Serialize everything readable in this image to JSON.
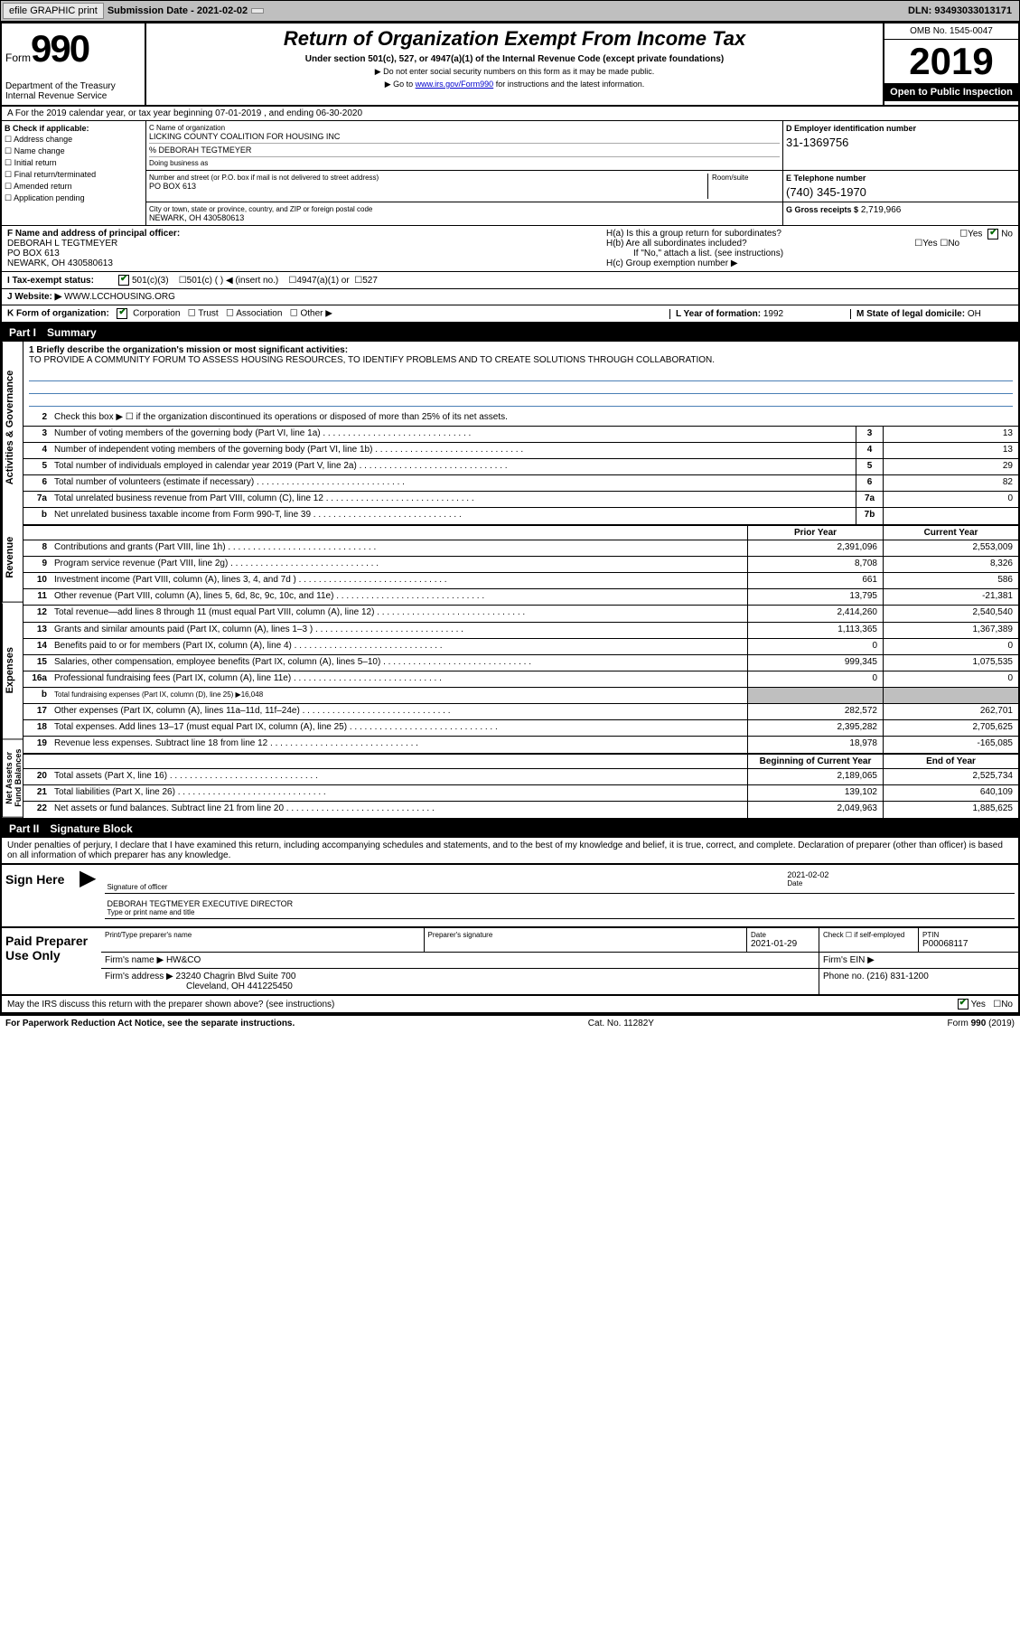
{
  "topbar": {
    "efile": "efile GRAPHIC print",
    "sub_label": "Submission Date - 2021-02-02",
    "dln": "DLN: 93493033013171"
  },
  "header": {
    "form_word": "Form",
    "form_number": "990",
    "title": "Return of Organization Exempt From Income Tax",
    "subtitle": "Under section 501(c), 527, or 4947(a)(1) of the Internal Revenue Code (except private foundations)",
    "note1": "▶ Do not enter social security numbers on this form as it may be made public.",
    "note2_pre": "▶ Go to ",
    "note2_link": "www.irs.gov/Form990",
    "note2_post": " for instructions and the latest information.",
    "dept": "Department of the Treasury\nInternal Revenue Service",
    "omb": "OMB No. 1545-0047",
    "year": "2019",
    "open_public": "Open to Public Inspection"
  },
  "row_a": "A For the 2019 calendar year, or tax year beginning 07-01-2019   , and ending 06-30-2020",
  "section_b": {
    "label": "B Check if applicable:",
    "opts": [
      "Address change",
      "Name change",
      "Initial return",
      "Final return/terminated",
      "Amended return",
      "Application pending"
    ]
  },
  "section_c": {
    "name_lbl": "C Name of organization",
    "name": "LICKING COUNTY COALITION FOR HOUSING INC",
    "care_of": "% DEBORAH TEGTMEYER",
    "dba_lbl": "Doing business as",
    "addr_lbl": "Number and street (or P.O. box if mail is not delivered to street address)",
    "room_lbl": "Room/suite",
    "addr": "PO BOX 613",
    "city_lbl": "City or town, state or province, country, and ZIP or foreign postal code",
    "city": "NEWARK, OH  430580613"
  },
  "section_d": {
    "ein_lbl": "D Employer identification number",
    "ein": "31-1369756",
    "tel_lbl": "E Telephone number",
    "tel": "(740) 345-1970",
    "gross_lbl": "G Gross receipts $",
    "gross": "2,719,966"
  },
  "section_f": {
    "lbl": "F Name and address of principal officer:",
    "name": "DEBORAH L TEGTMEYER",
    "addr1": "PO BOX 613",
    "addr2": "NEWARK, OH  430580613"
  },
  "section_h": {
    "ha": "H(a)  Is this a group return for subordinates?",
    "hb": "H(b)  Are all subordinates included?",
    "hb_note": "If \"No,\" attach a list. (see instructions)",
    "hc": "H(c)  Group exemption number ▶",
    "yes": "Yes",
    "no": "No"
  },
  "section_i": {
    "lbl": "I  Tax-exempt status:",
    "opts": [
      "501(c)(3)",
      "501(c) (   ) ◀ (insert no.)",
      "4947(a)(1) or",
      "527"
    ]
  },
  "section_j": {
    "lbl": "J  Website: ▶",
    "val": "WWW.LCCHOUSING.ORG"
  },
  "section_k": {
    "lbl": "K Form of organization:",
    "opts": [
      "Corporation",
      "Trust",
      "Association",
      "Other ▶"
    ]
  },
  "section_l": {
    "lbl": "L Year of formation:",
    "val": "1992"
  },
  "section_m": {
    "lbl": "M State of legal domicile:",
    "val": "OH"
  },
  "part1": {
    "header": "Part I",
    "title": "Summary",
    "line1_lbl": "1  Briefly describe the organization's mission or most significant activities:",
    "mission": "TO PROVIDE A COMMUNITY FORUM TO ASSESS HOUSING RESOURCES, TO IDENTIFY PROBLEMS AND TO CREATE SOLUTIONS THROUGH COLLABORATION.",
    "line2": "Check this box ▶ ☐  if the organization discontinued its operations or disposed of more than 25% of its net assets.",
    "col_prior": "Prior Year",
    "col_current": "Current Year",
    "col_begin": "Beginning of Current Year",
    "col_end": "End of Year",
    "vtabs": {
      "gov": "Activities & Governance",
      "rev": "Revenue",
      "exp": "Expenses",
      "net": "Net Assets or Fund Balances"
    },
    "lines_gov": [
      {
        "n": "3",
        "d": "Number of voting members of the governing body (Part VI, line 1a)",
        "nb": "3",
        "v": "13"
      },
      {
        "n": "4",
        "d": "Number of independent voting members of the governing body (Part VI, line 1b)",
        "nb": "4",
        "v": "13"
      },
      {
        "n": "5",
        "d": "Total number of individuals employed in calendar year 2019 (Part V, line 2a)",
        "nb": "5",
        "v": "29"
      },
      {
        "n": "6",
        "d": "Total number of volunteers (estimate if necessary)",
        "nb": "6",
        "v": "82"
      },
      {
        "n": "7a",
        "d": "Total unrelated business revenue from Part VIII, column (C), line 12",
        "nb": "7a",
        "v": "0"
      },
      {
        "n": "b",
        "d": "Net unrelated business taxable income from Form 990-T, line 39",
        "nb": "7b",
        "v": ""
      }
    ],
    "lines_rev": [
      {
        "n": "8",
        "d": "Contributions and grants (Part VIII, line 1h)",
        "p": "2,391,096",
        "c": "2,553,009"
      },
      {
        "n": "9",
        "d": "Program service revenue (Part VIII, line 2g)",
        "p": "8,708",
        "c": "8,326"
      },
      {
        "n": "10",
        "d": "Investment income (Part VIII, column (A), lines 3, 4, and 7d )",
        "p": "661",
        "c": "586"
      },
      {
        "n": "11",
        "d": "Other revenue (Part VIII, column (A), lines 5, 6d, 8c, 9c, 10c, and 11e)",
        "p": "13,795",
        "c": "-21,381"
      },
      {
        "n": "12",
        "d": "Total revenue—add lines 8 through 11 (must equal Part VIII, column (A), line 12)",
        "p": "2,414,260",
        "c": "2,540,540"
      }
    ],
    "lines_exp": [
      {
        "n": "13",
        "d": "Grants and similar amounts paid (Part IX, column (A), lines 1–3 )",
        "p": "1,113,365",
        "c": "1,367,389"
      },
      {
        "n": "14",
        "d": "Benefits paid to or for members (Part IX, column (A), line 4)",
        "p": "0",
        "c": "0"
      },
      {
        "n": "15",
        "d": "Salaries, other compensation, employee benefits (Part IX, column (A), lines 5–10)",
        "p": "999,345",
        "c": "1,075,535"
      },
      {
        "n": "16a",
        "d": "Professional fundraising fees (Part IX, column (A), line 11e)",
        "p": "0",
        "c": "0"
      },
      {
        "n": "b",
        "d": "Total fundraising expenses (Part IX, column (D), line 25) ▶16,048",
        "p": "",
        "c": "",
        "grey": true
      },
      {
        "n": "17",
        "d": "Other expenses (Part IX, column (A), lines 11a–11d, 11f–24e)",
        "p": "282,572",
        "c": "262,701"
      },
      {
        "n": "18",
        "d": "Total expenses. Add lines 13–17 (must equal Part IX, column (A), line 25)",
        "p": "2,395,282",
        "c": "2,705,625"
      },
      {
        "n": "19",
        "d": "Revenue less expenses. Subtract line 18 from line 12",
        "p": "18,978",
        "c": "-165,085"
      }
    ],
    "lines_net": [
      {
        "n": "20",
        "d": "Total assets (Part X, line 16)",
        "p": "2,189,065",
        "c": "2,525,734"
      },
      {
        "n": "21",
        "d": "Total liabilities (Part X, line 26)",
        "p": "139,102",
        "c": "640,109"
      },
      {
        "n": "22",
        "d": "Net assets or fund balances. Subtract line 21 from line 20",
        "p": "2,049,963",
        "c": "1,885,625"
      }
    ]
  },
  "part2": {
    "header": "Part II",
    "title": "Signature Block",
    "declaration": "Under penalties of perjury, I declare that I have examined this return, including accompanying schedules and statements, and to the best of my knowledge and belief, it is true, correct, and complete. Declaration of preparer (other than officer) is based on all information of which preparer has any knowledge."
  },
  "sign": {
    "label": "Sign Here",
    "sig_lbl": "Signature of officer",
    "date_lbl": "Date",
    "date": "2021-02-02",
    "name": "DEBORAH TEGTMEYER  EXECUTIVE DIRECTOR",
    "name_lbl": "Type or print name and title"
  },
  "preparer": {
    "label": "Paid Preparer Use Only",
    "name_lbl": "Print/Type preparer's name",
    "sig_lbl": "Preparer's signature",
    "date_lbl": "Date",
    "date": "2021-01-29",
    "check_lbl": "Check ☐ if self-employed",
    "ptin_lbl": "PTIN",
    "ptin": "P00068117",
    "firm_lbl": "Firm's name    ▶",
    "firm": "HW&CO",
    "ein_lbl": "Firm's EIN ▶",
    "addr_lbl": "Firm's address ▶",
    "addr1": "23240 Chagrin Blvd Suite 700",
    "addr2": "Cleveland, OH  441225450",
    "phone_lbl": "Phone no.",
    "phone": "(216) 831-1200",
    "discuss": "May the IRS discuss this return with the preparer shown above? (see instructions)",
    "yes": "Yes",
    "no": "No"
  },
  "footer": {
    "left": "For Paperwork Reduction Act Notice, see the separate instructions.",
    "mid": "Cat. No. 11282Y",
    "right": "Form 990 (2019)"
  }
}
